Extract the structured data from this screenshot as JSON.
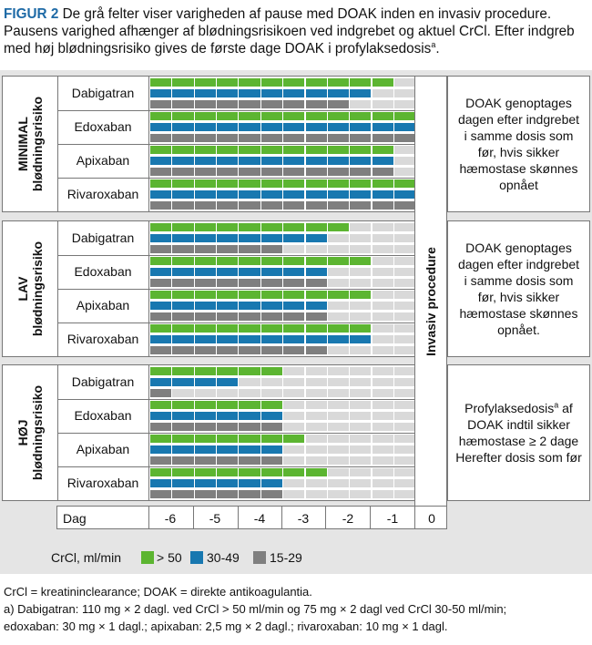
{
  "caption": {
    "label": "FIGUR 2",
    "text": " De grå felter viser varigheden af pause med DOAK inden en invasiv procedure. Pausens varighed afhænger af blødningsrisikoen ved indgrebet og aktuel CrCl. Efter indgreb med høj blødningsrisiko gives de første dage DOAK i profylaksedosis",
    "sup": "a",
    "end": "."
  },
  "procedure_label": "Invasiv procedure",
  "colors": {
    "gt50": "#5cb531",
    "c30_49": "#1878b0",
    "c15_29": "#7f7f7f",
    "pause": "#d9d9d9"
  },
  "groups": [
    {
      "label1": "MINIMAL",
      "label2": "blødningsrisiko",
      "note": "DOAK genoptages dagen efter indgrebet i samme dosis som før, hvis sikker hæmostase skønnes opnået",
      "note_sup": "",
      "drugs": [
        {
          "name": "Dabigatran",
          "active": [
            11,
            10,
            9
          ]
        },
        {
          "name": "Edoxaban",
          "active": [
            12,
            12,
            12
          ]
        },
        {
          "name": "Apixaban",
          "active": [
            11,
            11,
            11
          ]
        },
        {
          "name": "Rivaroxaban",
          "active": [
            12,
            12,
            12
          ]
        }
      ]
    },
    {
      "label1": "LAV",
      "label2": "blødningsrisiko",
      "note": "DOAK genoptages dagen efter indgrebet i samme dosis som før, hvis sikker hæmostase skønnes opnået.",
      "note_sup": "",
      "drugs": [
        {
          "name": "Dabigatran",
          "active": [
            9,
            8,
            6
          ]
        },
        {
          "name": "Edoxaban",
          "active": [
            10,
            8,
            8
          ]
        },
        {
          "name": "Apixaban",
          "active": [
            10,
            8,
            8
          ]
        },
        {
          "name": "Rivaroxaban",
          "active": [
            10,
            10,
            8
          ]
        }
      ]
    },
    {
      "label1": "HØJ",
      "label2": "blødningsrisiko",
      "note": "Profylaksedosis",
      "note_sup": "a",
      "note_rest": " af DOAK indtil sikker hæmostase ≥ 2 dage Herefter dosis som før",
      "drugs": [
        {
          "name": "Dabigatran",
          "active": [
            6,
            4,
            1
          ]
        },
        {
          "name": "Edoxaban",
          "active": [
            6,
            6,
            6
          ]
        },
        {
          "name": "Apixaban",
          "active": [
            7,
            6,
            6
          ]
        },
        {
          "name": "Rivaroxaban",
          "active": [
            8,
            6,
            6
          ]
        }
      ]
    }
  ],
  "day_axis": {
    "label": "Dag",
    "ticks": [
      "-6",
      "-5",
      "-4",
      "-3",
      "-2",
      "-1",
      "0"
    ]
  },
  "legend": {
    "title": "CrCl, ml/min",
    "items": [
      {
        "label": "> 50",
        "color": "#5cb531"
      },
      {
        "label": "30-49",
        "color": "#1878b0"
      },
      {
        "label": "15-29",
        "color": "#7f7f7f"
      }
    ]
  },
  "footer": {
    "line1": "CrCl = kreatininclearance; DOAK = direkte antikoagulantia.",
    "line2": "a) Dabigatran: 110 mg × 2 dagl. ved CrCl > 50 ml/min og 75 mg × 2 dagl ved CrCl 30-50 ml/min;",
    "line3": "edoxaban: 30 mg × 1 dagl.; apixaban: 2,5 mg × 2 dagl.; rivaroxaban: 10 mg × 1 dagl."
  }
}
